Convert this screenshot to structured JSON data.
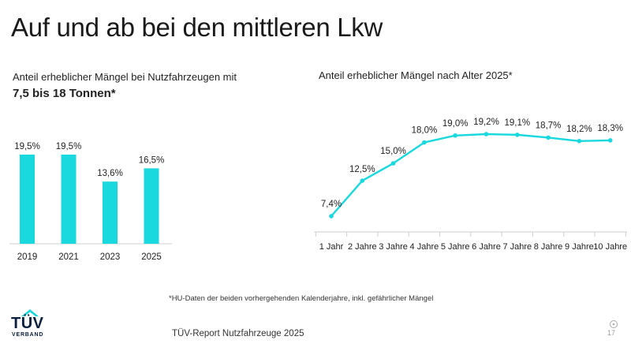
{
  "header": {
    "title": "Auf und ab bei den mittleren Lkw"
  },
  "footer": {
    "footnote": "*HU-Daten der beiden vorhergehenden Kalenderjahre, inkl. gefährlicher Mängel",
    "source": "TÜV-Report Nutzfahrzeuge 2025",
    "page_number": "17",
    "logo_text": "TÜV",
    "logo_subtext": "VERBAND"
  },
  "colors": {
    "accent": "#19d9df",
    "logo": "#0b1f3f",
    "axis": "#cfcfcf"
  },
  "chart_data": [
    {
      "type": "bar",
      "title": "Anteil erheblicher Mängel bei Nutzfahrzeugen mit",
      "subtitle": "7,5 bis 18 Tonnen*",
      "categories": [
        "2019",
        "2021",
        "2023",
        "2025"
      ],
      "values": [
        19.5,
        19.5,
        13.6,
        16.5
      ],
      "value_labels": [
        "19,5%",
        "19,5%",
        "13,6%",
        "16,5%"
      ],
      "ylim": [
        0,
        20
      ],
      "grid": false,
      "legend": "none"
    },
    {
      "type": "line",
      "title": "Anteil erheblicher Mängel nach Alter 2025*",
      "categories": [
        "1 Jahr",
        "2 Jahre",
        "3 Jahre",
        "4 Jahre",
        "5 Jahre",
        "6 Jahre",
        "7 Jahre",
        "8 Jahre",
        "9 Jahre",
        "10 Jahre"
      ],
      "values": [
        7.4,
        12.5,
        15.0,
        18.0,
        19.0,
        19.2,
        19.1,
        18.7,
        18.2,
        18.3
      ],
      "value_labels": [
        "7,4%",
        "12,5%",
        "15,0%",
        "18,0%",
        "19,0%",
        "19,2%",
        "19,1%",
        "18,7%",
        "18,2%",
        "18,3%"
      ],
      "ylim": [
        5,
        20
      ],
      "grid": false,
      "legend": "none"
    }
  ]
}
